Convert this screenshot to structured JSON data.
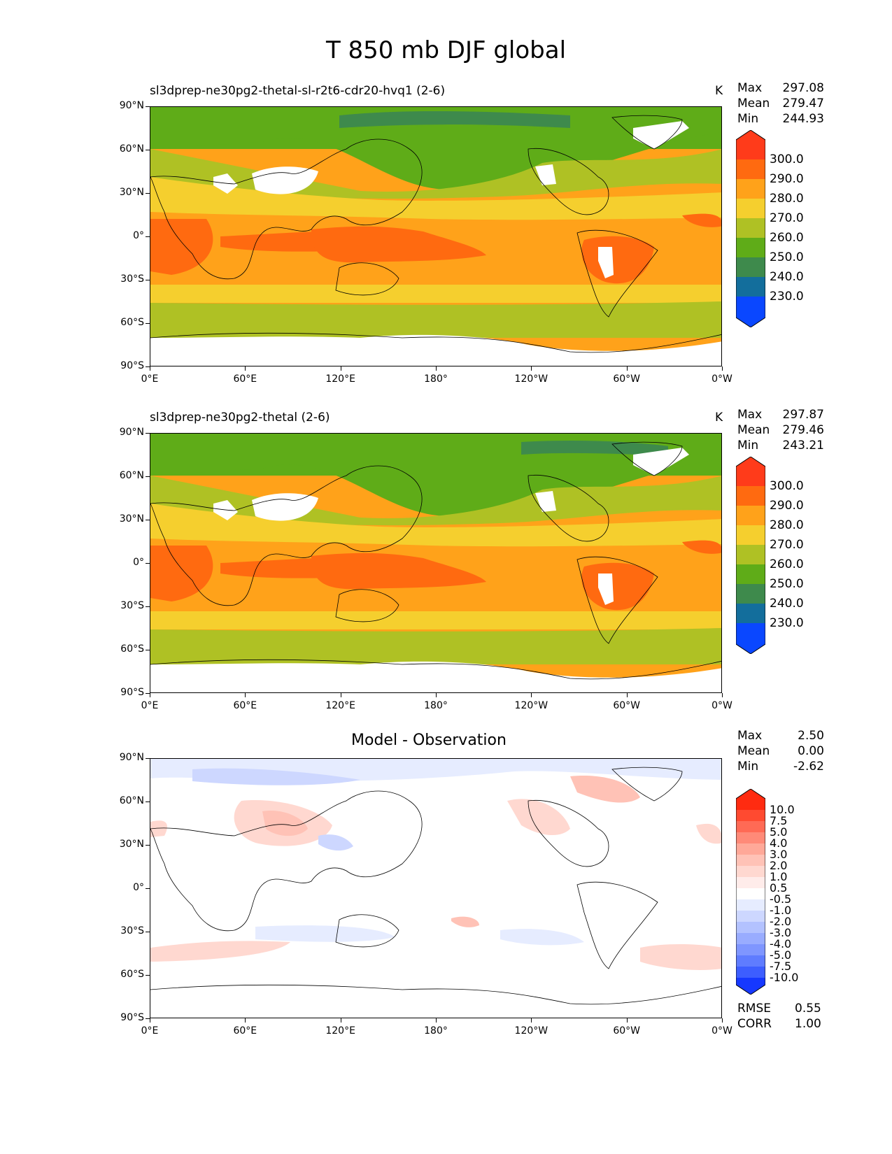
{
  "title": "T 850 mb DJF global",
  "lat_ticks": [
    "90°N",
    "60°N",
    "30°N",
    "0°",
    "30°S",
    "60°S",
    "90°S"
  ],
  "lon_ticks": [
    "0°E",
    "60°E",
    "120°E",
    "180°",
    "120°W",
    "60°W",
    "0°W"
  ],
  "panels": [
    {
      "title": "sl3dprep-ne30pg2-thetal-sl-r2t6-cdr20-hvq1 (2-6)",
      "units": "K",
      "stats": [
        {
          "label": "Max",
          "value": "297.08"
        },
        {
          "label": "Mean",
          "value": "279.47"
        },
        {
          "label": "Min",
          "value": "244.93"
        }
      ],
      "colorbar": {
        "labels": [
          "300.0",
          "290.0",
          "280.0",
          "270.0",
          "260.0",
          "250.0",
          "240.0",
          "230.0"
        ],
        "colors": [
          "#ff3b1a",
          "#ff6a10",
          "#ffa21a",
          "#f5cf2e",
          "#afc124",
          "#5fac18",
          "#3e8a4c",
          "#136e9c",
          "#0a47ff"
        ]
      }
    },
    {
      "title": "sl3dprep-ne30pg2-thetal (2-6)",
      "units": "K",
      "stats": [
        {
          "label": "Max",
          "value": "297.87"
        },
        {
          "label": "Mean",
          "value": "279.46"
        },
        {
          "label": "Min",
          "value": "243.21"
        }
      ],
      "colorbar": {
        "labels": [
          "300.0",
          "290.0",
          "280.0",
          "270.0",
          "260.0",
          "250.0",
          "240.0",
          "230.0"
        ],
        "colors": [
          "#ff3b1a",
          "#ff6a10",
          "#ffa21a",
          "#f5cf2e",
          "#afc124",
          "#5fac18",
          "#3e8a4c",
          "#136e9c",
          "#0a47ff"
        ]
      }
    },
    {
      "title": "Model - Observation",
      "stats": [
        {
          "label": "Max",
          "value": "2.50"
        },
        {
          "label": "Mean",
          "value": "0.00"
        },
        {
          "label": "Min",
          "value": "-2.62"
        }
      ],
      "colorbar": {
        "labels": [
          "10.0",
          "7.5",
          "5.0",
          "4.0",
          "3.0",
          "2.0",
          "1.0",
          "0.5",
          "-0.5",
          "-1.0",
          "-2.0",
          "-3.0",
          "-4.0",
          "-5.0",
          "-7.5",
          "-10.0"
        ],
        "colors": [
          "#ff2b10",
          "#ff4a30",
          "#ff6a55",
          "#ff8a78",
          "#ffa898",
          "#ffc2b6",
          "#ffd8d0",
          "#ffecea",
          "#ffffff",
          "#e6ecff",
          "#cdd7ff",
          "#b3c2ff",
          "#99acff",
          "#7f96ff",
          "#5f7cff",
          "#3d5eff",
          "#1638ff"
        ]
      },
      "metrics": [
        {
          "label": "RMSE",
          "value": "0.55"
        },
        {
          "label": "CORR",
          "value": "1.00"
        }
      ]
    }
  ]
}
